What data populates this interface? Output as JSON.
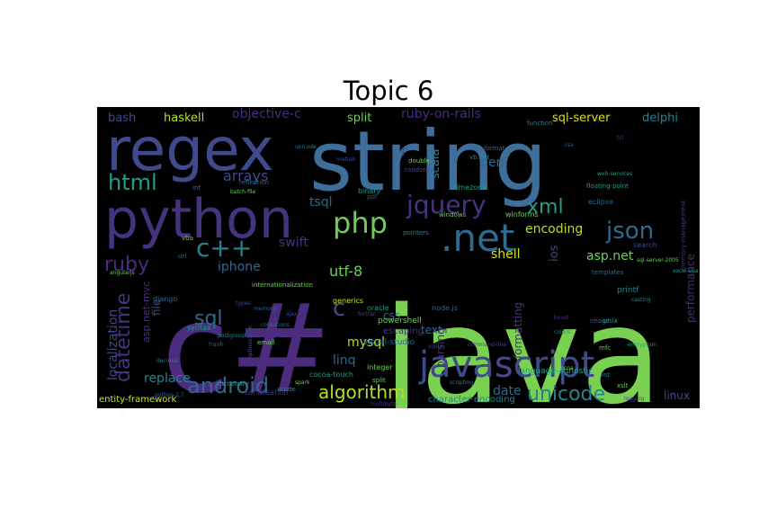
{
  "title": "Topic 6",
  "colors": {
    "background": "#000000",
    "purple": "#4b2c7f",
    "violet": "#46337e",
    "indigo": "#3e4a89",
    "blue": "#31688e",
    "steel": "#3e6e9a",
    "teal": "#26828e",
    "sea": "#1f9e89",
    "green": "#35b779",
    "lime": "#6ece58",
    "lightgreen": "#7ad151",
    "yellow": "#b5de2b",
    "gold": "#d2e21b"
  },
  "words": [
    {
      "text": "java",
      "color": "lightgreen"
    },
    {
      "text": "c#",
      "color": "purple"
    },
    {
      "text": "string",
      "color": "steel"
    },
    {
      "text": "regex",
      "color": "indigo"
    },
    {
      "text": "python",
      "color": "violet"
    },
    {
      "text": "javascript",
      "color": "indigo"
    },
    {
      "text": ".net",
      "color": "blue"
    },
    {
      "text": "php",
      "color": "lime"
    },
    {
      "text": "c++",
      "color": "teal"
    },
    {
      "text": "html",
      "color": "sea"
    },
    {
      "text": "jquery",
      "color": "violet"
    },
    {
      "text": "json",
      "color": "blue"
    },
    {
      "text": "xml",
      "color": "sea"
    },
    {
      "text": "android",
      "color": "blue"
    },
    {
      "text": "unicode",
      "color": "teal"
    },
    {
      "text": "algorithm",
      "color": "yellow"
    },
    {
      "text": "ruby",
      "color": "purple"
    },
    {
      "text": "datetime",
      "color": "violet"
    },
    {
      "text": "sql",
      "color": "blue"
    },
    {
      "text": "c",
      "color": "indigo"
    },
    {
      "text": "arrays",
      "color": "indigo"
    },
    {
      "text": "iphone",
      "color": "blue"
    },
    {
      "text": "encoding",
      "color": "yellow"
    },
    {
      "text": "asp.net",
      "color": "lime"
    },
    {
      "text": "shell",
      "color": "gold"
    },
    {
      "text": "utf-8",
      "color": "lime"
    },
    {
      "text": "swift",
      "color": "violet"
    },
    {
      "text": "perl",
      "color": "blue"
    },
    {
      "text": "tsql",
      "color": "blue"
    },
    {
      "text": "replace",
      "color": "teal"
    },
    {
      "text": "date",
      "color": "blue"
    },
    {
      "text": "mysql",
      "color": "yellow"
    },
    {
      "text": "linq",
      "color": "blue"
    },
    {
      "text": "css",
      "color": "blue"
    },
    {
      "text": "text",
      "color": "blue"
    },
    {
      "text": "localization",
      "color": "indigo"
    },
    {
      "text": "linux",
      "color": "indigo"
    },
    {
      "text": "haskell",
      "color": "yellow"
    },
    {
      "text": "bash",
      "color": "indigo"
    },
    {
      "text": "objective-c",
      "color": "purple"
    },
    {
      "text": "split",
      "color": "lime"
    },
    {
      "text": "ruby-on-rails",
      "color": "purple"
    },
    {
      "text": "sql-server",
      "color": "gold"
    },
    {
      "text": "delphi",
      "color": "teal"
    },
    {
      "text": "scala",
      "color": "teal"
    },
    {
      "text": "ios",
      "color": "indigo"
    },
    {
      "text": "file",
      "color": "indigo"
    },
    {
      "text": "asp.net-mvc",
      "color": "violet"
    },
    {
      "text": "parsing",
      "color": "purple"
    },
    {
      "text": "formatting",
      "color": "purple"
    },
    {
      "text": "performance",
      "color": "purple"
    },
    {
      "text": "entity-framework",
      "color": "gold"
    },
    {
      "text": "character-encoding",
      "color": "teal"
    },
    {
      "text": "r",
      "color": "indigo"
    },
    {
      "text": "escaping",
      "color": "violet"
    },
    {
      "text": "visual-studio",
      "color": "blue"
    },
    {
      "text": "language-agnostic",
      "color": "sea"
    },
    {
      "text": "powershell",
      "color": "lime"
    },
    {
      "text": "oracle",
      "color": "sea"
    },
    {
      "text": "integer",
      "color": "lime"
    },
    {
      "text": "cocoa-touch",
      "color": "sea"
    },
    {
      "text": "serialization",
      "color": "violet"
    },
    {
      "text": "syntax",
      "color": "sea"
    },
    {
      "text": "django",
      "color": "blue"
    },
    {
      "text": "node.js",
      "color": "blue"
    },
    {
      "text": "unix",
      "color": "sea"
    },
    {
      "text": "printf",
      "color": "teal"
    },
    {
      "text": "search",
      "color": "indigo"
    },
    {
      "text": "binary",
      "color": "sea"
    },
    {
      "text": "timezone",
      "color": "sea"
    },
    {
      "text": "winforms",
      "color": "lime"
    },
    {
      "text": "generics",
      "color": "gold"
    },
    {
      "text": "internationalization",
      "color": "lime"
    },
    {
      "text": "reflection",
      "color": "blue"
    },
    {
      "text": "dictionary",
      "color": "sea"
    },
    {
      "text": "email",
      "color": "lime"
    },
    {
      "text": "hash",
      "color": "indigo"
    },
    {
      "text": "pointers",
      "color": "teal"
    },
    {
      "text": "windows",
      "color": "lime"
    },
    {
      "text": "eclipse",
      "color": "blue"
    },
    {
      "text": "floating-point",
      "color": "sea"
    },
    {
      "text": "templates",
      "color": "blue"
    },
    {
      "text": "image",
      "color": "blue"
    },
    {
      "text": "xcode",
      "color": "teal"
    },
    {
      "text": "time",
      "color": "lime"
    },
    {
      "text": "double",
      "color": "lime"
    },
    {
      "text": "vba",
      "color": "lime"
    },
    {
      "text": "uri",
      "color": "blue"
    },
    {
      "text": "int",
      "color": "teal"
    },
    {
      "text": "list",
      "color": "teal"
    },
    {
      "text": "mfc",
      "color": "lime"
    },
    {
      "text": "vb.net",
      "color": "teal"
    },
    {
      "text": "format",
      "color": "blue"
    },
    {
      "text": "random",
      "color": "indigo"
    },
    {
      "text": "colors",
      "color": "teal"
    },
    {
      "text": "memory-management",
      "color": "violet"
    },
    {
      "text": "spark",
      "color": "lime"
    },
    {
      "text": "logging",
      "color": "indigo"
    },
    {
      "text": "decimal",
      "color": "teal"
    },
    {
      "text": "types",
      "color": "indigo"
    },
    {
      "text": "cocoa",
      "color": "lime"
    },
    {
      "text": "ajax",
      "color": "indigo"
    },
    {
      "text": "angularjs",
      "color": "lime"
    },
    {
      "text": "function",
      "color": "teal"
    },
    {
      "text": "memory",
      "color": "blue"
    },
    {
      "text": "pdf",
      "color": "indigo"
    },
    {
      "text": "sqlite",
      "color": "indigo"
    },
    {
      "text": "csv",
      "color": "blue"
    },
    {
      "text": "split",
      "color": "lime"
    },
    {
      "text": "postgresql",
      "color": "teal"
    },
    {
      "text": "optimization",
      "color": "indigo"
    },
    {
      "text": "excel-vba",
      "color": "sea"
    },
    {
      "text": "scripting",
      "color": "teal"
    },
    {
      "text": "boost",
      "color": "violet"
    },
    {
      "text": "casting",
      "color": "teal"
    },
    {
      "text": "tcl",
      "color": "indigo"
    },
    {
      "text": "fortran",
      "color": "indigo"
    },
    {
      "text": "xslt",
      "color": "lime"
    },
    {
      "text": "batch-file",
      "color": "lime"
    },
    {
      "text": "encryption",
      "color": "sea"
    },
    {
      "text": "unicode",
      "color": "teal"
    },
    {
      "text": "collections",
      "color": "blue"
    },
    {
      "text": "sql-server-2005",
      "color": "lime"
    },
    {
      "text": "python-2.7",
      "color": "blue"
    },
    {
      "text": "matlab",
      "color": "indigo"
    },
    {
      "text": "web-services",
      "color": "sea"
    },
    {
      "text": "command-line",
      "color": "indigo"
    },
    {
      "text": "multibyte",
      "color": "violet"
    }
  ]
}
